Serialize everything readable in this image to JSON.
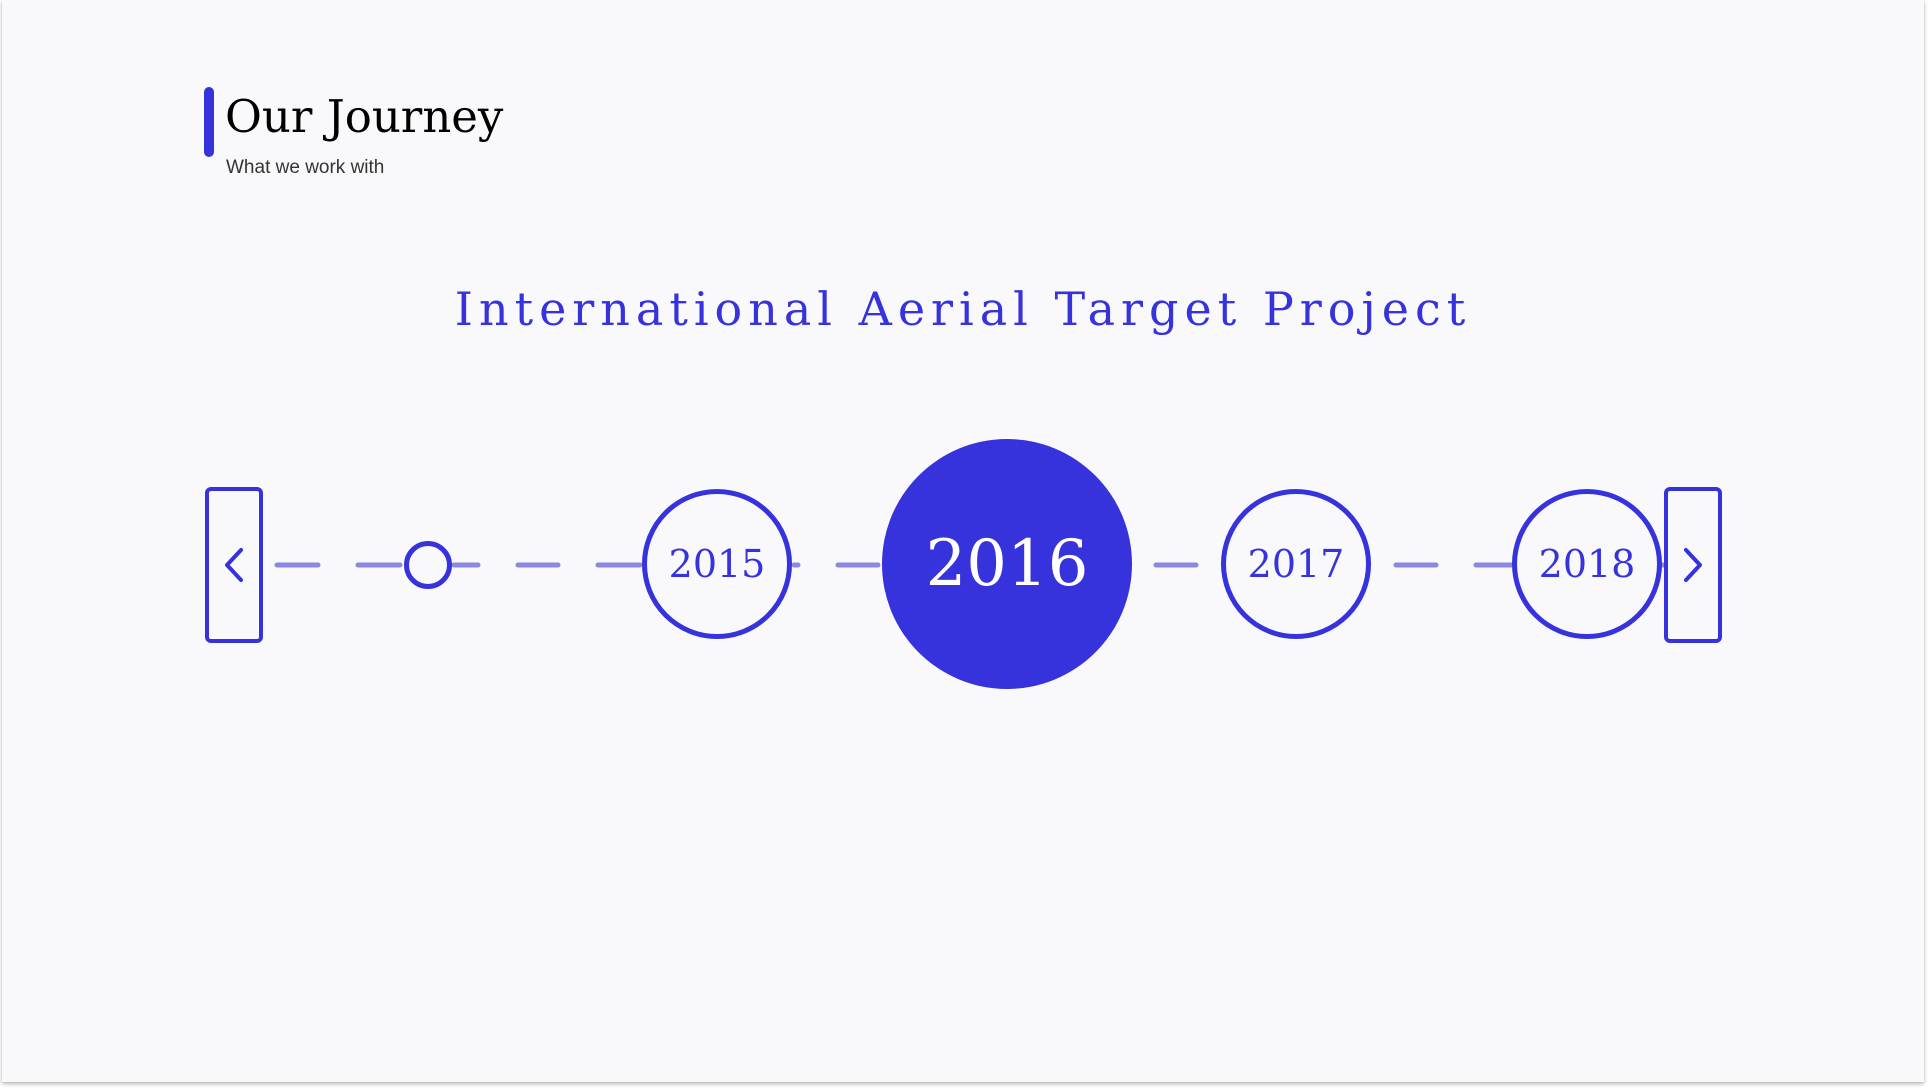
{
  "header": {
    "title": "Our Journey",
    "subtitle": "What we work with"
  },
  "project": {
    "title": "International Aerial Target Project"
  },
  "timeline": {
    "years": [
      "2015",
      "2016",
      "2017",
      "2018"
    ],
    "active_year": "2016"
  },
  "icons": {
    "prev": "chevron-left-icon",
    "next": "chevron-right-icon"
  },
  "colors": {
    "accent": "#3632dc",
    "connector": "#8a88e0",
    "background": "#f9f9fb"
  }
}
